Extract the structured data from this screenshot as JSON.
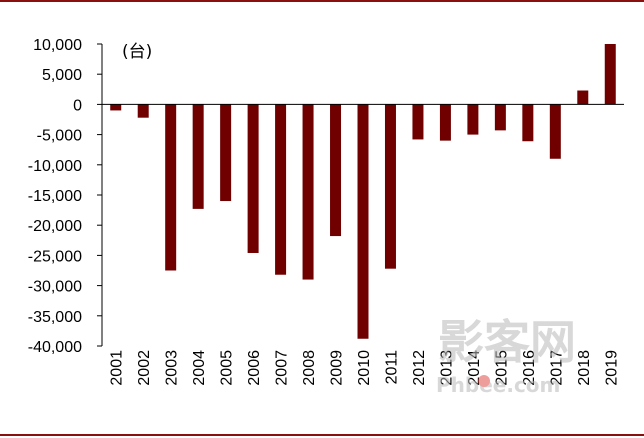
{
  "colors": {
    "bar": "#700000",
    "frame": "#8a0f0f",
    "axis": "#000000"
  },
  "watermark": {
    "main": "影客网",
    "sub": "Phbee.com"
  },
  "chart_data": {
    "type": "bar",
    "title": "",
    "xlabel": "",
    "ylabel": "",
    "unit": "(台)",
    "categories": [
      "2001",
      "2002",
      "2003",
      "2004",
      "2005",
      "2006",
      "2007",
      "2008",
      "2009",
      "2010",
      "2011",
      "2012",
      "2013",
      "2014",
      "2015",
      "2016",
      "2017",
      "2018",
      "2019"
    ],
    "values": [
      -1000,
      -2200,
      -27500,
      -17300,
      -16000,
      -24600,
      -28200,
      -29000,
      -21800,
      -38800,
      -27200,
      -5800,
      -6000,
      -5000,
      -4300,
      -6100,
      -9000,
      2300,
      10000
    ],
    "ylim": [
      -40000,
      10000
    ],
    "yticks": [
      10000,
      5000,
      0,
      -5000,
      -10000,
      -15000,
      -20000,
      -25000,
      -30000,
      -35000,
      -40000
    ],
    "ytick_labels": [
      "10,000",
      "5,000",
      "0",
      "-5,000",
      "-10,000",
      "-15,000",
      "-20,000",
      "-25,000",
      "-30,000",
      "-35,000",
      "-40,000"
    ],
    "grid": false,
    "legend": "none"
  }
}
